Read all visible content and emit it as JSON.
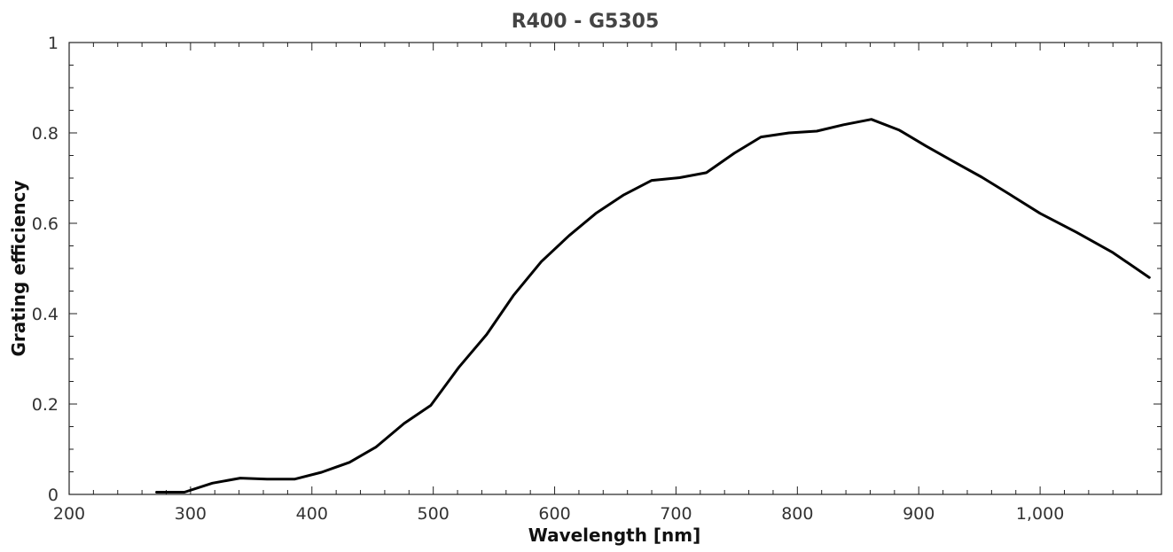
{
  "chart_data": {
    "type": "line",
    "title": "R400 - G5305",
    "xlabel": "Wavelength [nm]",
    "ylabel": "Grating efficiency",
    "xlim": [
      200,
      1100
    ],
    "ylim": [
      0,
      1
    ],
    "grid": false,
    "legend": "none",
    "x_ticks": [
      200,
      300,
      400,
      500,
      600,
      700,
      800,
      900,
      1000
    ],
    "x_tick_labels": [
      "200",
      "300",
      "400",
      "500",
      "600",
      "700",
      "800",
      "900",
      "1,000"
    ],
    "y_ticks": [
      0,
      0.2,
      0.4,
      0.6,
      0.8,
      1
    ],
    "y_tick_labels": [
      "0",
      "0.2",
      "0.4",
      "0.6",
      "0.8",
      "1"
    ],
    "line_color": "#000000",
    "series": [
      {
        "x": [
          272,
          295,
          318,
          341,
          363,
          386,
          408,
          431,
          453,
          476,
          498,
          521,
          544,
          566,
          589,
          612,
          634,
          657,
          680,
          703,
          725,
          748,
          770,
          793,
          816,
          838,
          861,
          884,
          906,
          929,
          952,
          975,
          1000,
          1030,
          1060,
          1090
        ],
        "y": [
          0.005,
          0.005,
          0.025,
          0.036,
          0.034,
          0.034,
          0.049,
          0.071,
          0.105,
          0.157,
          0.197,
          0.281,
          0.354,
          0.44,
          0.515,
          0.573,
          0.622,
          0.663,
          0.695,
          0.701,
          0.712,
          0.755,
          0.791,
          0.8,
          0.804,
          0.818,
          0.83,
          0.806,
          0.771,
          0.736,
          0.702,
          0.664,
          0.622,
          0.58,
          0.535,
          0.48
        ]
      }
    ]
  }
}
